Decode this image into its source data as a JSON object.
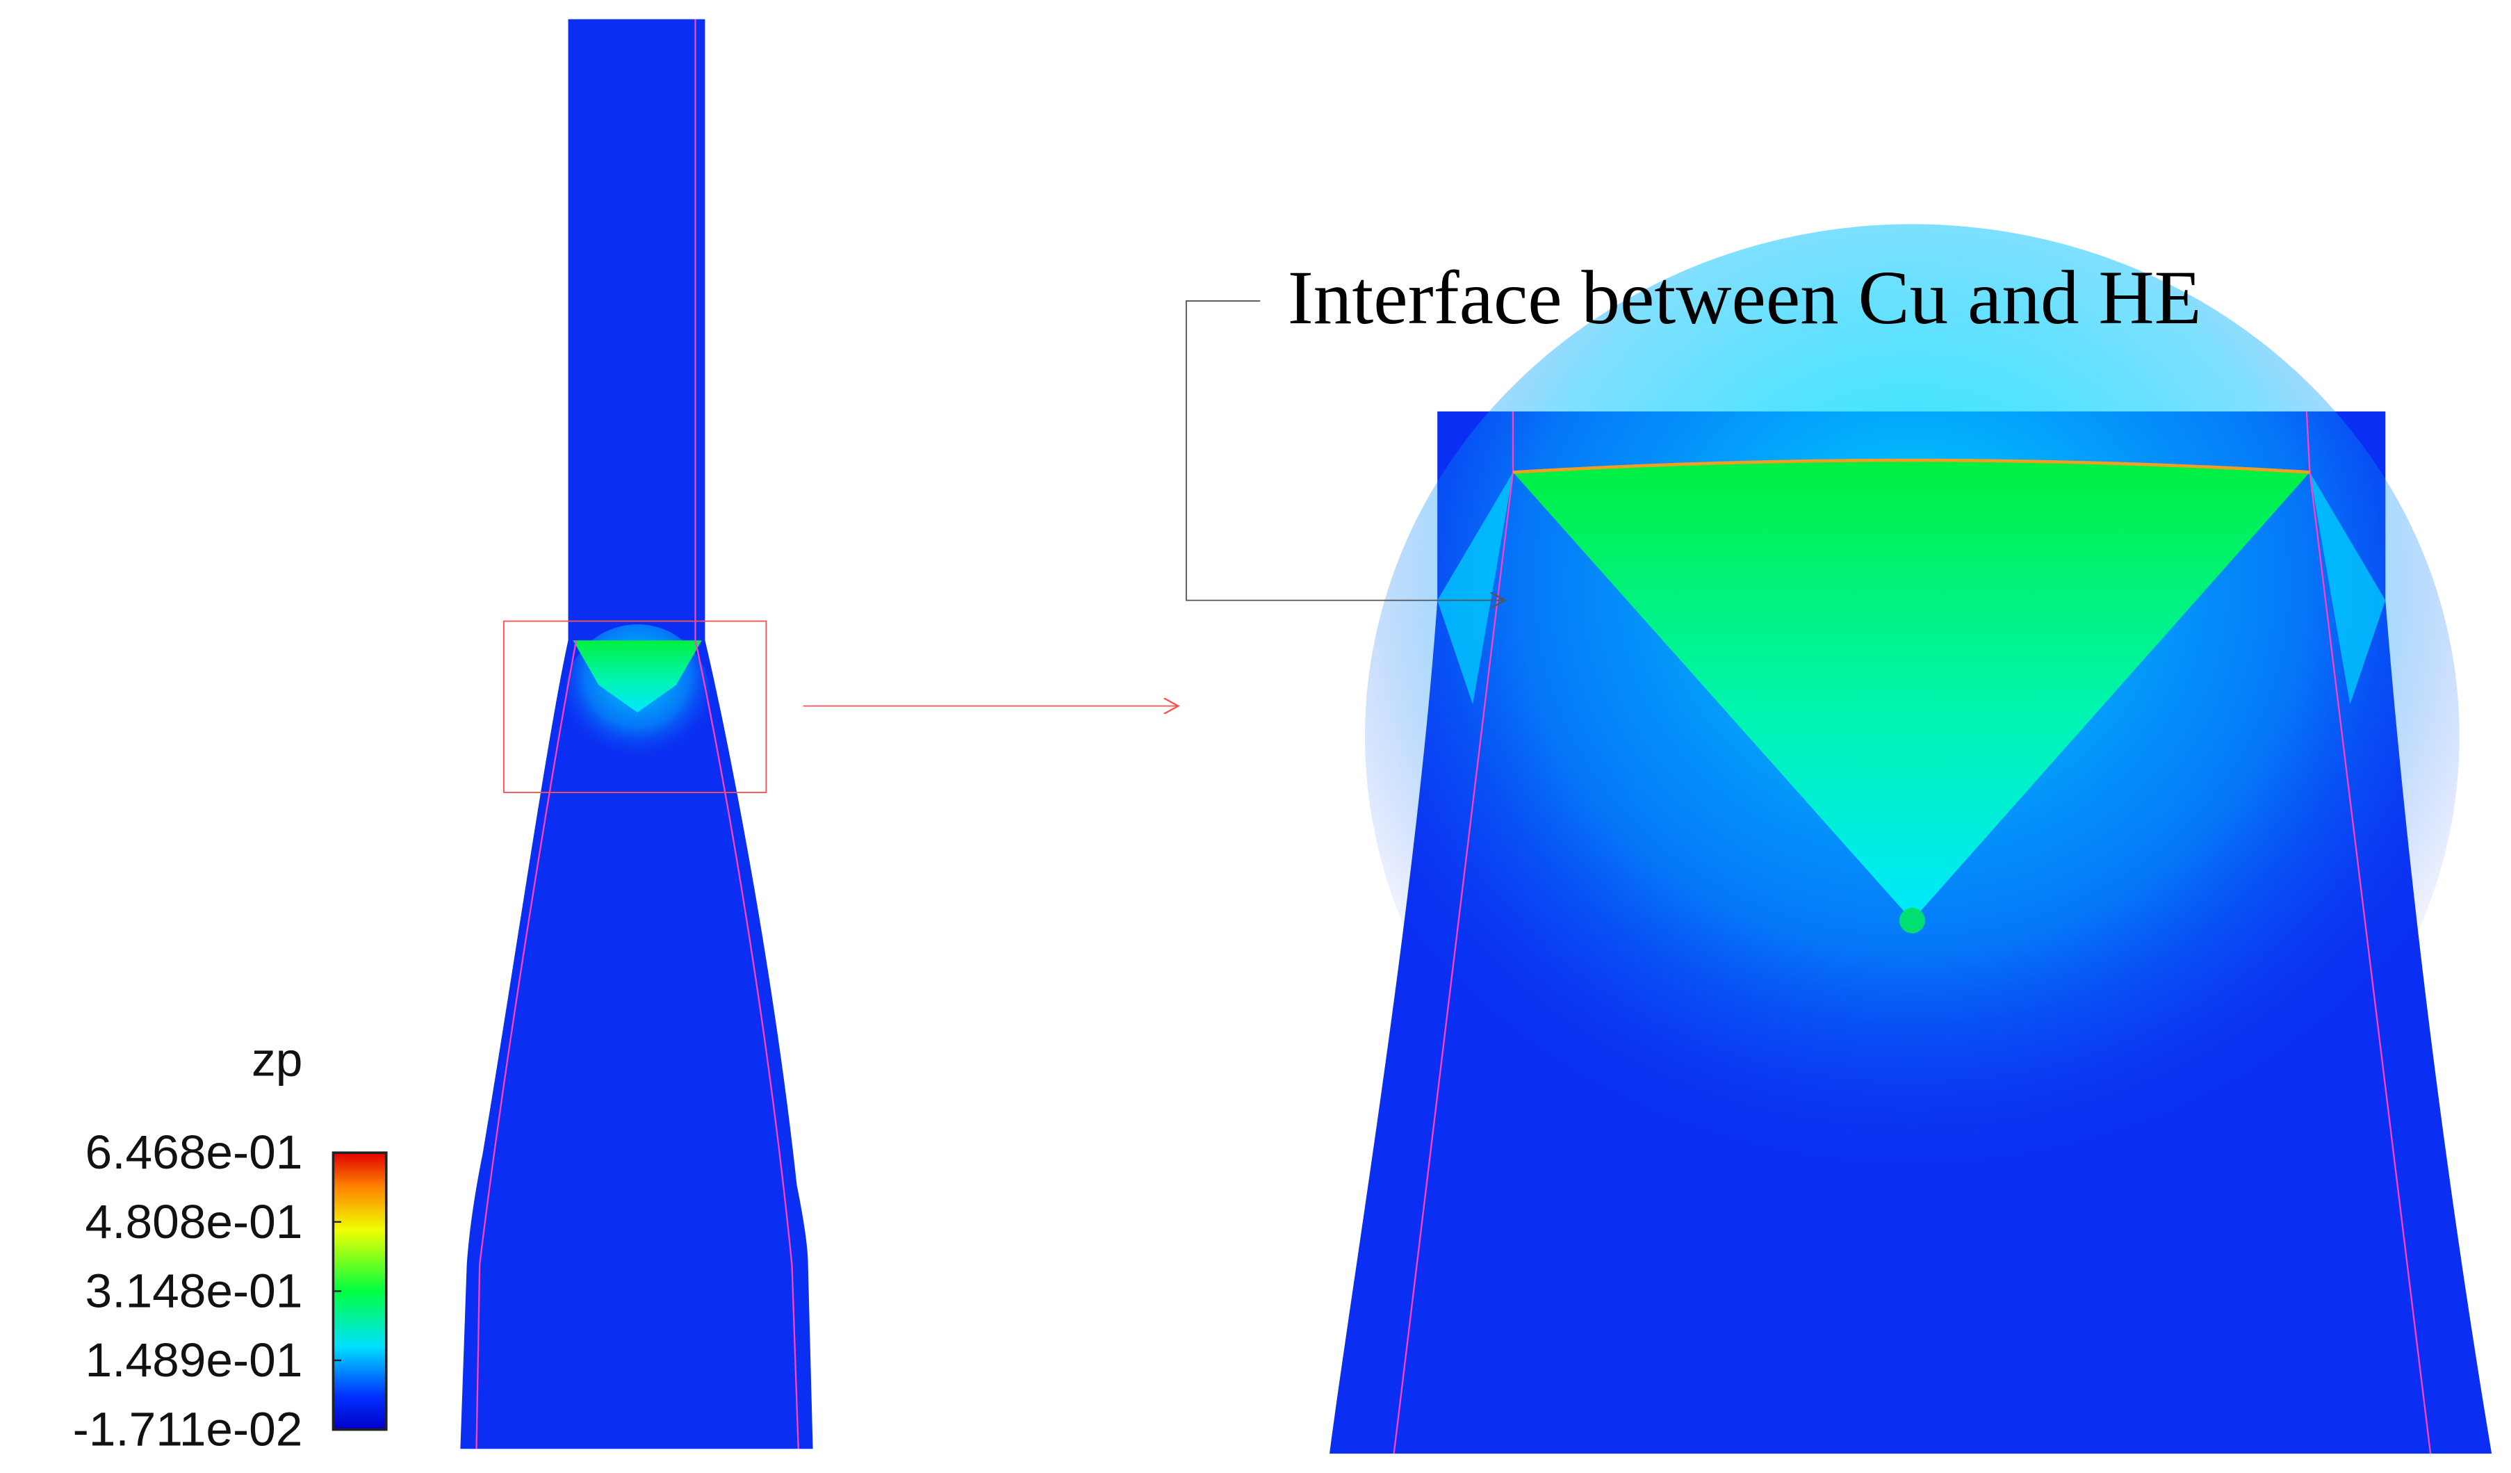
{
  "annotation": "Interface between Cu and HE",
  "colorbar": {
    "title": "zp",
    "lim": [
      -0.01711,
      0.6468
    ],
    "ticks": [
      {
        "value": 0.6468,
        "label": "6.468e-01"
      },
      {
        "value": 0.4808,
        "label": "4.808e-01"
      },
      {
        "value": 0.3148,
        "label": "3.148e-01"
      },
      {
        "value": 0.1489,
        "label": "1.489e-01"
      },
      {
        "value": -0.01711,
        "label": "-1.711e-02"
      }
    ]
  }
}
